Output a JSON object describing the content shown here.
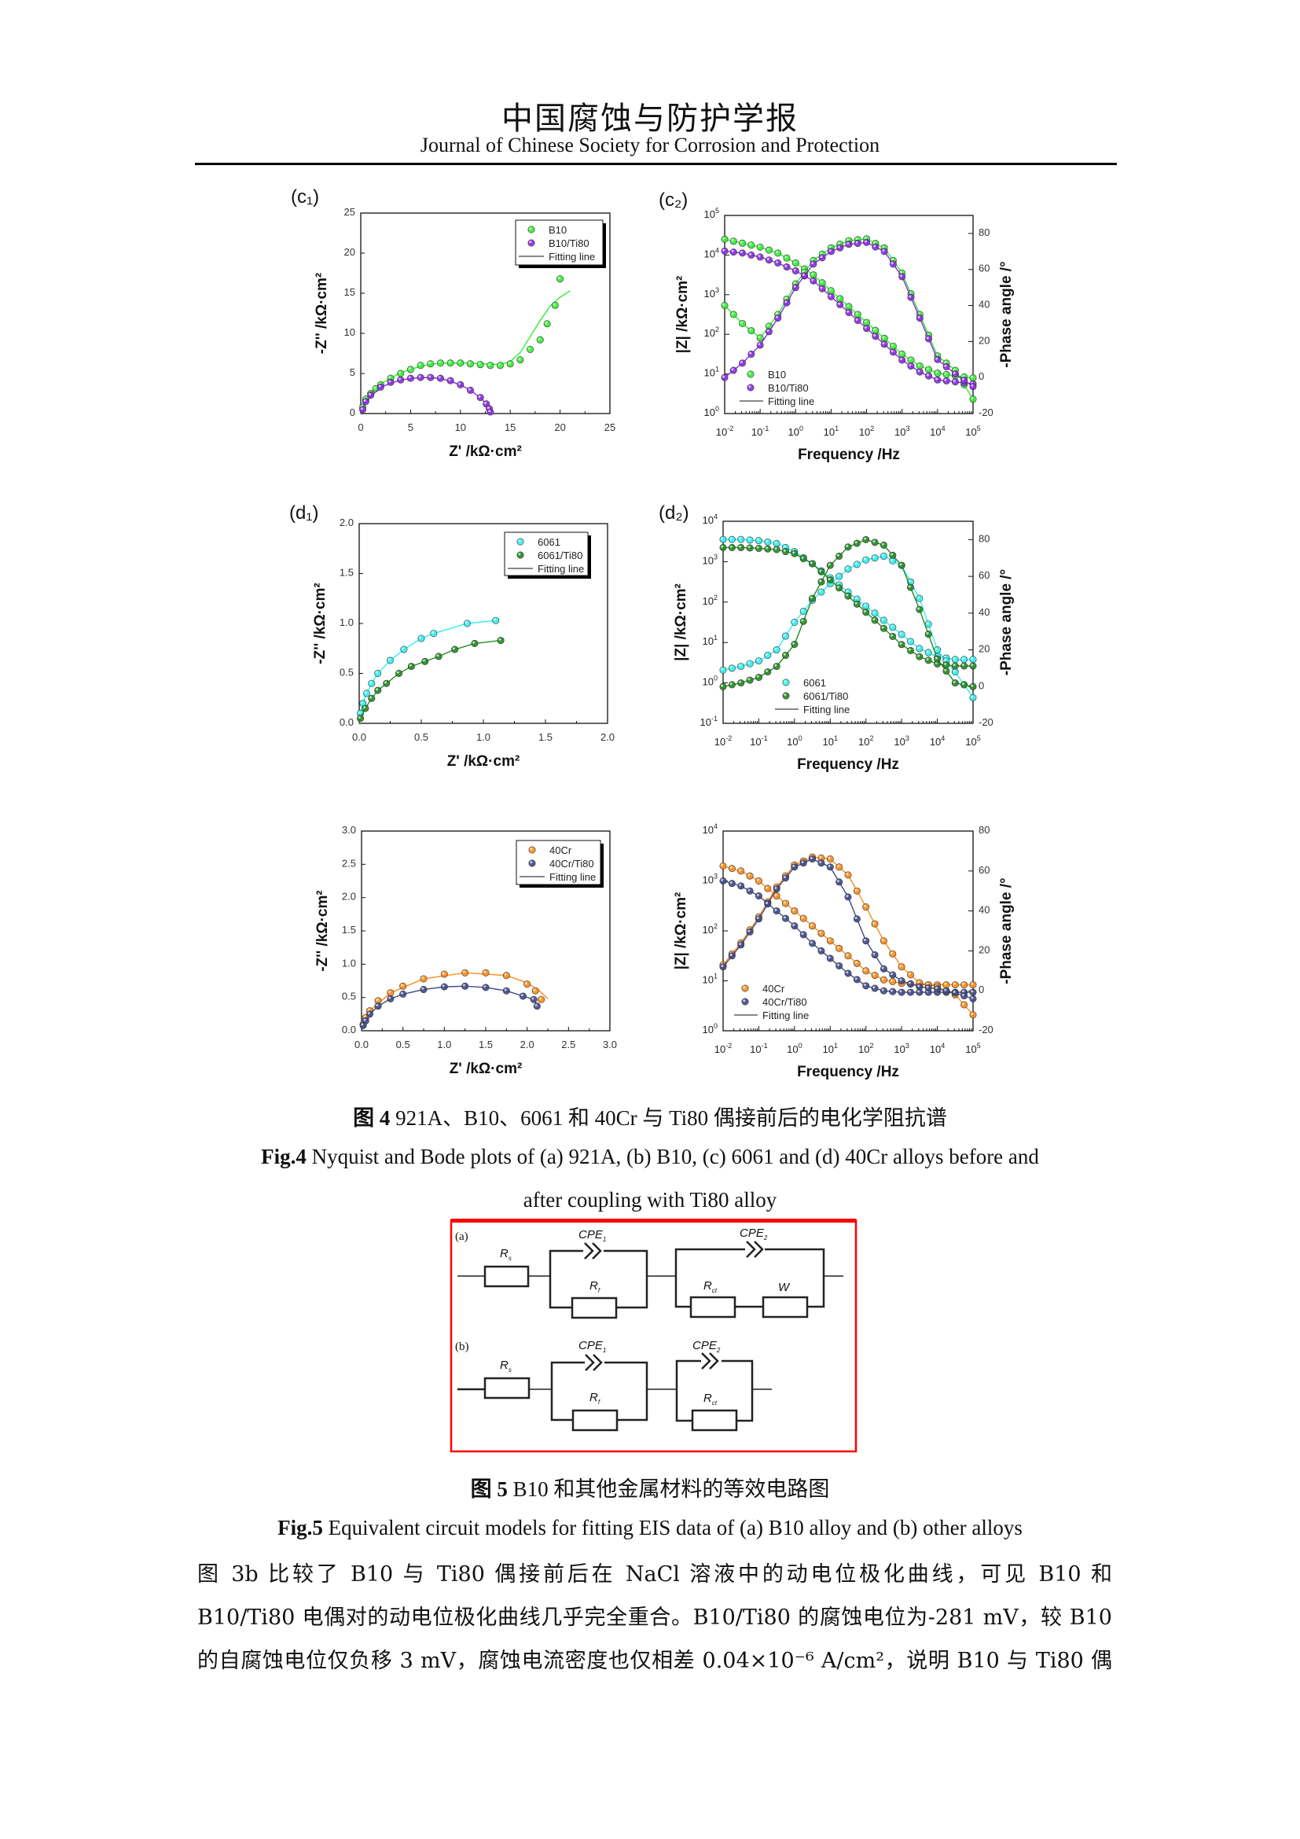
{
  "header": {
    "journal_cn": "中国腐蚀与防护学报",
    "journal_en": "Journal of Chinese Society for Corrosion and Protection"
  },
  "fig4": {
    "cn_label": "图 4",
    "cn_text": " 921A、B10、6061 和 40Cr 与 Ti80 偶接前后的电化学阻抗谱",
    "en_label": "Fig.4",
    "en_text1": " Nyquist and Bode plots of (a) 921A, (b) B10, (c) 6061 and (d) 40Cr alloys before and",
    "en_text2": "after coupling with Ti80 alloy"
  },
  "fig5": {
    "cn_label": "图 5",
    "cn_text": " B10 和其他金属材料的等效电路图",
    "en_label": "Fig.5",
    "en_text": " Equivalent circuit models for fitting EIS data of (a) B10 alloy and (b) other alloys",
    "border_color": "#ff0000",
    "circuit_a": {
      "label": "(a)",
      "rs": "R",
      "rs_sub": "s",
      "cpe1": "CPE",
      "cpe1_sub": "1",
      "rf": "R",
      "rf_sub": "f",
      "cpe2": "CPE",
      "cpe2_sub": "2",
      "rct": "R",
      "rct_sub": "ct",
      "w": "W"
    },
    "circuit_b": {
      "label": "(b)",
      "rs": "R",
      "rs_sub": "s",
      "cpe1": "CPE",
      "cpe1_sub": "1",
      "rf": "R",
      "rf_sub": "f",
      "cpe2": "CPE",
      "cpe2_sub": "2",
      "rct": "R",
      "rct_sub": "ct"
    }
  },
  "body": {
    "line1": "图 3b 比较了 B10 与 Ti80 偶接前后在 NaCl 溶液中的动电位极化曲线，可见 B10 和",
    "line2": "B10/Ti80 电偶对的动电位极化曲线几乎完全重合。B10/Ti80 的腐蚀电位为-281 mV，较 B10",
    "line3": "的自腐蚀电位仅负移 3 mV，腐蚀电流密度也仅相差 0.04×10⁻⁶ A/cm²，说明 B10 与 Ti80 偶"
  },
  "chart_data": [
    {
      "id": "c1",
      "type": "scatter",
      "panel_label": "(c₁)",
      "xlabel": "Z' /kΩ·cm²",
      "ylabel": "-Z'' /kΩ·cm²",
      "xlim": [
        0,
        25
      ],
      "ylim": [
        0,
        25
      ],
      "x_ticks": [
        0,
        5,
        10,
        15,
        20,
        25
      ],
      "y_ticks": [
        0,
        5,
        10,
        15,
        20,
        25
      ],
      "fit_label": "Fitting line",
      "legend": "top-right",
      "series": [
        {
          "name": "B10",
          "color": "#33ee33",
          "points": [
            [
              0.2,
              0.8
            ],
            [
              0.5,
              1.8
            ],
            [
              1,
              2.5
            ],
            [
              1.5,
              3.1
            ],
            [
              2,
              3.6
            ],
            [
              3,
              4.4
            ],
            [
              4,
              5
            ],
            [
              5,
              5.5
            ],
            [
              6,
              6
            ],
            [
              7,
              6.2
            ],
            [
              8,
              6.3
            ],
            [
              9,
              6.3
            ],
            [
              10,
              6.3
            ],
            [
              11,
              6.2
            ],
            [
              12,
              6.1
            ],
            [
              13,
              6
            ],
            [
              14,
              6
            ],
            [
              15,
              6.2
            ],
            [
              16,
              6.7
            ],
            [
              17,
              8
            ],
            [
              18,
              9.2
            ],
            [
              18.7,
              11.2
            ],
            [
              19.5,
              13.5
            ],
            [
              20,
              16.8
            ]
          ],
          "fit": [
            [
              0,
              0
            ],
            [
              0.5,
              1.9
            ],
            [
              2,
              3.7
            ],
            [
              4,
              5.1
            ],
            [
              6,
              5.9
            ],
            [
              8,
              6.3
            ],
            [
              11,
              6.3
            ],
            [
              14,
              6.1
            ],
            [
              15,
              6.5
            ],
            [
              16,
              7.6
            ],
            [
              17,
              9.6
            ],
            [
              18,
              11.6
            ],
            [
              19,
              13.4
            ],
            [
              20,
              14.5
            ],
            [
              21,
              15.3
            ]
          ]
        },
        {
          "name": "B10/Ti80",
          "color": "#8a2be2",
          "points": [
            [
              0.2,
              0.5
            ],
            [
              0.5,
              1.5
            ],
            [
              1,
              2.3
            ],
            [
              2,
              3.3
            ],
            [
              3,
              3.9
            ],
            [
              4,
              4.2
            ],
            [
              5,
              4.4
            ],
            [
              6,
              4.5
            ],
            [
              7,
              4.5
            ],
            [
              8,
              4.4
            ],
            [
              9,
              4.1
            ],
            [
              10,
              3.6
            ],
            [
              11,
              2.9
            ],
            [
              12,
              2
            ],
            [
              12.6,
              1.2
            ],
            [
              12.9,
              0.6
            ],
            [
              13,
              0.2
            ]
          ],
          "fit": [
            [
              0,
              0
            ],
            [
              0.5,
              1.5
            ],
            [
              2,
              3.3
            ],
            [
              4,
              4.2
            ],
            [
              6,
              4.5
            ],
            [
              8,
              4.4
            ],
            [
              10,
              3.6
            ],
            [
              11,
              2.9
            ],
            [
              12,
              2
            ],
            [
              12.6,
              1.2
            ],
            [
              13,
              0
            ]
          ]
        }
      ]
    },
    {
      "id": "c2",
      "type": "line",
      "panel_label": "(c₂)",
      "xlabel": "Frequency /Hz",
      "ylabel": "|Z| /kΩ·cm²",
      "ylabel_right": "-Phase angle /°",
      "x_log_range": [
        -2,
        5
      ],
      "y_log_range": [
        0,
        5
      ],
      "y_right_range": [
        -20,
        90
      ],
      "x_ticks_exp": [
        -2,
        -1,
        0,
        1,
        2,
        3,
        4,
        5
      ],
      "y_ticks_exp": [
        0,
        1,
        2,
        3,
        4,
        5
      ],
      "y_right_ticks": [
        -20,
        0,
        20,
        40,
        60,
        80
      ],
      "fit_label": "Fitting line",
      "legend": "bottom-left",
      "log10_freq": [
        -2,
        -1.5,
        -1,
        -0.5,
        0,
        0.5,
        1,
        1.5,
        2,
        2.5,
        3,
        3.5,
        4,
        4.5,
        5
      ],
      "series": [
        {
          "name": "B10",
          "color": "#33ee33",
          "log10_Z": [
            4.4,
            4.3,
            4.2,
            4.05,
            3.8,
            3.5,
            3.1,
            2.7,
            2.3,
            1.9,
            1.5,
            1.2,
            1.02,
            0.95,
            0.9
          ],
          "phase_deg": [
            40,
            30,
            22,
            35,
            52,
            65,
            72,
            76,
            77,
            72,
            58,
            35,
            12,
            4,
            -12
          ]
        },
        {
          "name": "B10/Ti80",
          "color": "#8a2be2",
          "log10_Z": [
            4.1,
            4.05,
            3.95,
            3.8,
            3.6,
            3.35,
            2.95,
            2.55,
            2.15,
            1.75,
            1.35,
            1.05,
            0.85,
            0.8,
            0.75
          ],
          "phase_deg": [
            0,
            8,
            18,
            33,
            50,
            63,
            70,
            74,
            75,
            70,
            56,
            33,
            10,
            2,
            -5
          ]
        }
      ]
    },
    {
      "id": "d1",
      "type": "scatter",
      "panel_label": "(d₁)",
      "xlabel": "Z' /kΩ·cm²",
      "ylabel": "-Z'' /kΩ·cm²",
      "xlim": [
        0,
        2
      ],
      "ylim": [
        0,
        2
      ],
      "x_ticks": [
        0.0,
        0.5,
        1.0,
        1.5,
        2.0
      ],
      "y_ticks": [
        0.0,
        0.5,
        1.0,
        1.5,
        2.0
      ],
      "fit_label": "Fitting line",
      "legend": "top-right",
      "series": [
        {
          "name": "6061",
          "color": "#33eeee",
          "points": [
            [
              0.01,
              0.1
            ],
            [
              0.03,
              0.2
            ],
            [
              0.06,
              0.3
            ],
            [
              0.1,
              0.4
            ],
            [
              0.15,
              0.5
            ],
            [
              0.25,
              0.63
            ],
            [
              0.36,
              0.74
            ],
            [
              0.5,
              0.85
            ],
            [
              0.6,
              0.9
            ],
            [
              0.87,
              1.0
            ],
            [
              1.1,
              1.03
            ]
          ]
        },
        {
          "name": "6061/Ti80",
          "color": "#228b22",
          "points": [
            [
              0.01,
              0.05
            ],
            [
              0.05,
              0.15
            ],
            [
              0.1,
              0.25
            ],
            [
              0.15,
              0.33
            ],
            [
              0.22,
              0.4
            ],
            [
              0.32,
              0.5
            ],
            [
              0.42,
              0.57
            ],
            [
              0.53,
              0.62
            ],
            [
              0.64,
              0.67
            ],
            [
              0.77,
              0.74
            ],
            [
              0.93,
              0.8
            ],
            [
              1.14,
              0.83
            ]
          ]
        }
      ]
    },
    {
      "id": "d2",
      "type": "line",
      "panel_label": "(d₂)",
      "xlabel": "Frequency /Hz",
      "ylabel": "|Z| /kΩ·cm²",
      "ylabel_right": "-Phase angle /°",
      "x_log_range": [
        -2,
        5
      ],
      "y_log_range": [
        -1,
        4
      ],
      "y_right_range": [
        -20,
        90
      ],
      "x_ticks_exp": [
        -2,
        -1,
        0,
        1,
        2,
        3,
        4,
        5
      ],
      "y_ticks_exp": [
        -1,
        0,
        1,
        2,
        3,
        4
      ],
      "y_right_ticks": [
        -20,
        0,
        20,
        40,
        60,
        80
      ],
      "fit_label": "Fitting line",
      "legend": "bottom-left",
      "log10_freq": [
        -2,
        -1.5,
        -1,
        -0.5,
        0,
        0.5,
        1,
        1.5,
        2,
        2.5,
        3,
        3.5,
        4,
        4.5,
        5
      ],
      "series": [
        {
          "name": "6061",
          "color": "#33eeee",
          "log10_Z": [
            3.55,
            3.55,
            3.52,
            3.45,
            3.25,
            2.95,
            2.6,
            2.25,
            1.9,
            1.55,
            1.2,
            0.85,
            0.65,
            0.58,
            0.58
          ],
          "phase_deg": [
            9,
            11,
            14,
            20,
            35,
            47,
            56,
            64,
            69,
            71,
            66,
            48,
            20,
            8,
            -6
          ]
        },
        {
          "name": "6061/Ti80",
          "color": "#228b22",
          "log10_Z": [
            3.35,
            3.35,
            3.33,
            3.3,
            3.2,
            2.95,
            2.55,
            2.15,
            1.75,
            1.35,
            0.95,
            0.65,
            0.47,
            0.42,
            0.42
          ],
          "phase_deg": [
            0,
            2,
            5,
            11,
            23,
            48,
            66,
            76,
            80,
            77,
            66,
            42,
            15,
            2,
            0
          ]
        }
      ]
    },
    {
      "id": "e1",
      "type": "scatter",
      "panel_label": "",
      "xlabel": "Z' /kΩ·cm²",
      "ylabel": "-Z'' /kΩ·cm²",
      "xlim": [
        0,
        3
      ],
      "ylim": [
        0,
        3
      ],
      "x_ticks": [
        0.0,
        0.5,
        1.0,
        1.5,
        2.0,
        2.5,
        3.0
      ],
      "y_ticks": [
        0.0,
        0.5,
        1.0,
        1.5,
        2.0,
        2.5,
        3.0
      ],
      "fit_label": "Fitting line",
      "legend": "top-right",
      "series": [
        {
          "name": "40Cr",
          "color": "#ff8c1a",
          "points": [
            [
              0.02,
              0.1
            ],
            [
              0.05,
              0.2
            ],
            [
              0.1,
              0.3
            ],
            [
              0.2,
              0.45
            ],
            [
              0.35,
              0.57
            ],
            [
              0.5,
              0.67
            ],
            [
              0.75,
              0.78
            ],
            [
              1,
              0.85
            ],
            [
              1.25,
              0.87
            ],
            [
              1.5,
              0.87
            ],
            [
              1.75,
              0.83
            ],
            [
              2,
              0.7
            ],
            [
              2.1,
              0.6
            ],
            [
              2.17,
              0.47
            ]
          ],
          "fit": [
            [
              0,
              0
            ],
            [
              0.1,
              0.3
            ],
            [
              0.35,
              0.57
            ],
            [
              0.75,
              0.78
            ],
            [
              1.25,
              0.87
            ],
            [
              1.75,
              0.83
            ],
            [
              2,
              0.72
            ],
            [
              2.15,
              0.6
            ],
            [
              2.25,
              0.48
            ]
          ]
        },
        {
          "name": "40Cr/Ti80",
          "color": "#3f4a8a",
          "points": [
            [
              0.02,
              0.08
            ],
            [
              0.05,
              0.15
            ],
            [
              0.1,
              0.25
            ],
            [
              0.2,
              0.37
            ],
            [
              0.35,
              0.48
            ],
            [
              0.5,
              0.55
            ],
            [
              0.75,
              0.62
            ],
            [
              1,
              0.66
            ],
            [
              1.25,
              0.67
            ],
            [
              1.5,
              0.65
            ],
            [
              1.75,
              0.6
            ],
            [
              1.95,
              0.52
            ],
            [
              2.08,
              0.47
            ],
            [
              2.12,
              0.37
            ]
          ]
        }
      ]
    },
    {
      "id": "e2",
      "type": "line",
      "panel_label": "",
      "xlabel": "Frequency /Hz",
      "ylabel": "|Z| /kΩ·cm²",
      "ylabel_right": "-Phase angle /°",
      "x_log_range": [
        -2,
        5
      ],
      "y_log_range": [
        0,
        4
      ],
      "y_right_range": [
        -20,
        80
      ],
      "x_ticks_exp": [
        -2,
        -1,
        0,
        1,
        2,
        3,
        4,
        5
      ],
      "y_ticks_exp": [
        0,
        1,
        2,
        3,
        4
      ],
      "y_right_ticks": [
        -20,
        0,
        20,
        40,
        60,
        80
      ],
      "fit_label": "Fitting line",
      "legend": "bottom-left",
      "log10_freq": [
        -2,
        -1.5,
        -1,
        -0.5,
        0,
        0.5,
        1,
        1.5,
        2,
        2.5,
        3,
        3.5,
        4,
        4.5,
        5
      ],
      "series": [
        {
          "name": "40Cr",
          "color": "#ff8c1a",
          "log10_Z": [
            3.3,
            3.2,
            3.0,
            2.7,
            2.4,
            2.1,
            1.8,
            1.5,
            1.2,
            1.02,
            0.95,
            0.92,
            0.92,
            0.92,
            0.92
          ],
          "phase_deg": [
            13,
            24,
            37,
            52,
            63,
            67,
            66,
            58,
            42,
            25,
            12,
            4,
            2,
            -2,
            -12
          ]
        },
        {
          "name": "40Cr/Ti80",
          "color": "#3f4a8a",
          "log10_Z": [
            3.0,
            2.9,
            2.7,
            2.4,
            2.1,
            1.75,
            1.45,
            1.15,
            0.9,
            0.8,
            0.77,
            0.77,
            0.77,
            0.77,
            0.77
          ],
          "phase_deg": [
            12,
            23,
            36,
            51,
            62,
            66,
            62,
            47,
            25,
            11,
            5,
            2,
            1,
            -1,
            -4
          ]
        }
      ]
    }
  ]
}
